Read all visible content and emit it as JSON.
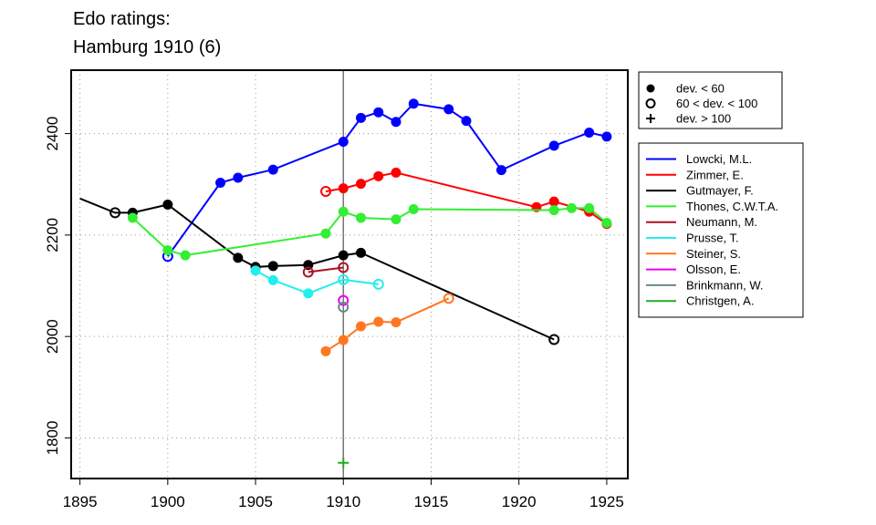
{
  "chart_data": {
    "type": "line",
    "title": [
      "Edo ratings:",
      "Hamburg 1910 (6)"
    ],
    "xlabel": "",
    "ylabel": "",
    "xlim": [
      1894.5,
      1926.2
    ],
    "ylim": [
      1720,
      2525
    ],
    "x_ticks": [
      1895,
      1900,
      1905,
      1910,
      1915,
      1920,
      1925
    ],
    "y_ticks": [
      1800,
      2000,
      2200,
      2400
    ],
    "grid": true,
    "vline_x": 1910,
    "marker_legend": [
      {
        "label": "dev. < 60",
        "marker": "filled"
      },
      {
        "label": "60 < dev. < 100",
        "marker": "open"
      },
      {
        "label": "dev. > 100",
        "marker": "plus"
      }
    ],
    "series": [
      {
        "name": "Lowcki, M.L.",
        "color": "#0000ff",
        "x": [
          1900,
          1903,
          1904,
          1906,
          1910,
          1911,
          1912,
          1913,
          1914,
          1916,
          1917,
          1919,
          1922,
          1924,
          1925
        ],
        "y": [
          2158,
          2303,
          2313,
          2329,
          2384,
          2431,
          2442,
          2423,
          2459,
          2448,
          2425,
          2328,
          2376,
          2402,
          2394
        ],
        "markers": [
          "open",
          "filled",
          "filled",
          "filled",
          "filled",
          "filled",
          "filled",
          "filled",
          "filled",
          "filled",
          "filled",
          "filled",
          "filled",
          "filled",
          "filled"
        ]
      },
      {
        "name": "Zimmer, E.",
        "color": "#ff0000",
        "x": [
          1909,
          1910,
          1911,
          1912,
          1913,
          1921,
          1922,
          1924,
          1925
        ],
        "y": [
          2286,
          2292,
          2301,
          2316,
          2323,
          2255,
          2266,
          2246,
          2222
        ],
        "markers": [
          "open",
          "filled",
          "filled",
          "filled",
          "filled",
          "filled",
          "filled",
          "filled",
          "filled"
        ]
      },
      {
        "name": "Gutmayer, F.",
        "color": "#000000",
        "x": [
          1895,
          1897,
          1898,
          1900,
          1904,
          1905,
          1906,
          1908,
          1910,
          1911,
          1922
        ],
        "y": [
          2272,
          2244,
          2244,
          2260,
          2155,
          2137,
          2139,
          2141,
          2160,
          2165,
          1994
        ],
        "markers": [
          "none",
          "open",
          "filled",
          "filled",
          "filled",
          "filled",
          "filled",
          "filled",
          "filled",
          "filled",
          "open"
        ]
      },
      {
        "name": "Thones, C.W.T.A.",
        "color": "#33ee33",
        "x": [
          1898,
          1900,
          1901,
          1909,
          1910,
          1911,
          1913,
          1914,
          1922,
          1923,
          1924,
          1925
        ],
        "y": [
          2234,
          2170,
          2160,
          2203,
          2246,
          2234,
          2231,
          2251,
          2249,
          2253,
          2253,
          2224
        ],
        "markers": [
          "filled",
          "filled",
          "filled",
          "filled",
          "filled",
          "filled",
          "filled",
          "filled",
          "filled",
          "filled",
          "filled",
          "filled"
        ]
      },
      {
        "name": "Neumann, M.",
        "color": "#aa1122",
        "x": [
          1908,
          1910
        ],
        "y": [
          2127,
          2136
        ],
        "markers": [
          "open",
          "open"
        ]
      },
      {
        "name": "Prusse, T.",
        "color": "#22eeee",
        "x": [
          1905,
          1906,
          1908,
          1910,
          1912
        ],
        "y": [
          2130,
          2111,
          2085,
          2112,
          2103
        ],
        "markers": [
          "filled",
          "filled",
          "filled",
          "open",
          "open"
        ]
      },
      {
        "name": "Steiner, S.",
        "color": "#ff7722",
        "x": [
          1909,
          1910,
          1911,
          1912,
          1913,
          1916
        ],
        "y": [
          1971,
          1993,
          2020,
          2029,
          2028,
          2075
        ],
        "markers": [
          "filled",
          "filled",
          "filled",
          "filled",
          "filled",
          "open"
        ]
      },
      {
        "name": "Olsson, E.",
        "color": "#ee00ee",
        "x": [
          1910
        ],
        "y": [
          2071
        ],
        "markers": [
          "open"
        ]
      },
      {
        "name": "Brinkmann, W.",
        "color": "#668888",
        "x": [
          1910
        ],
        "y": [
          2058
        ],
        "markers": [
          "open"
        ]
      },
      {
        "name": "Christgen, A.",
        "color": "#22aa22",
        "x": [
          1910
        ],
        "y": [
          1751
        ],
        "markers": [
          "plus"
        ]
      }
    ]
  }
}
